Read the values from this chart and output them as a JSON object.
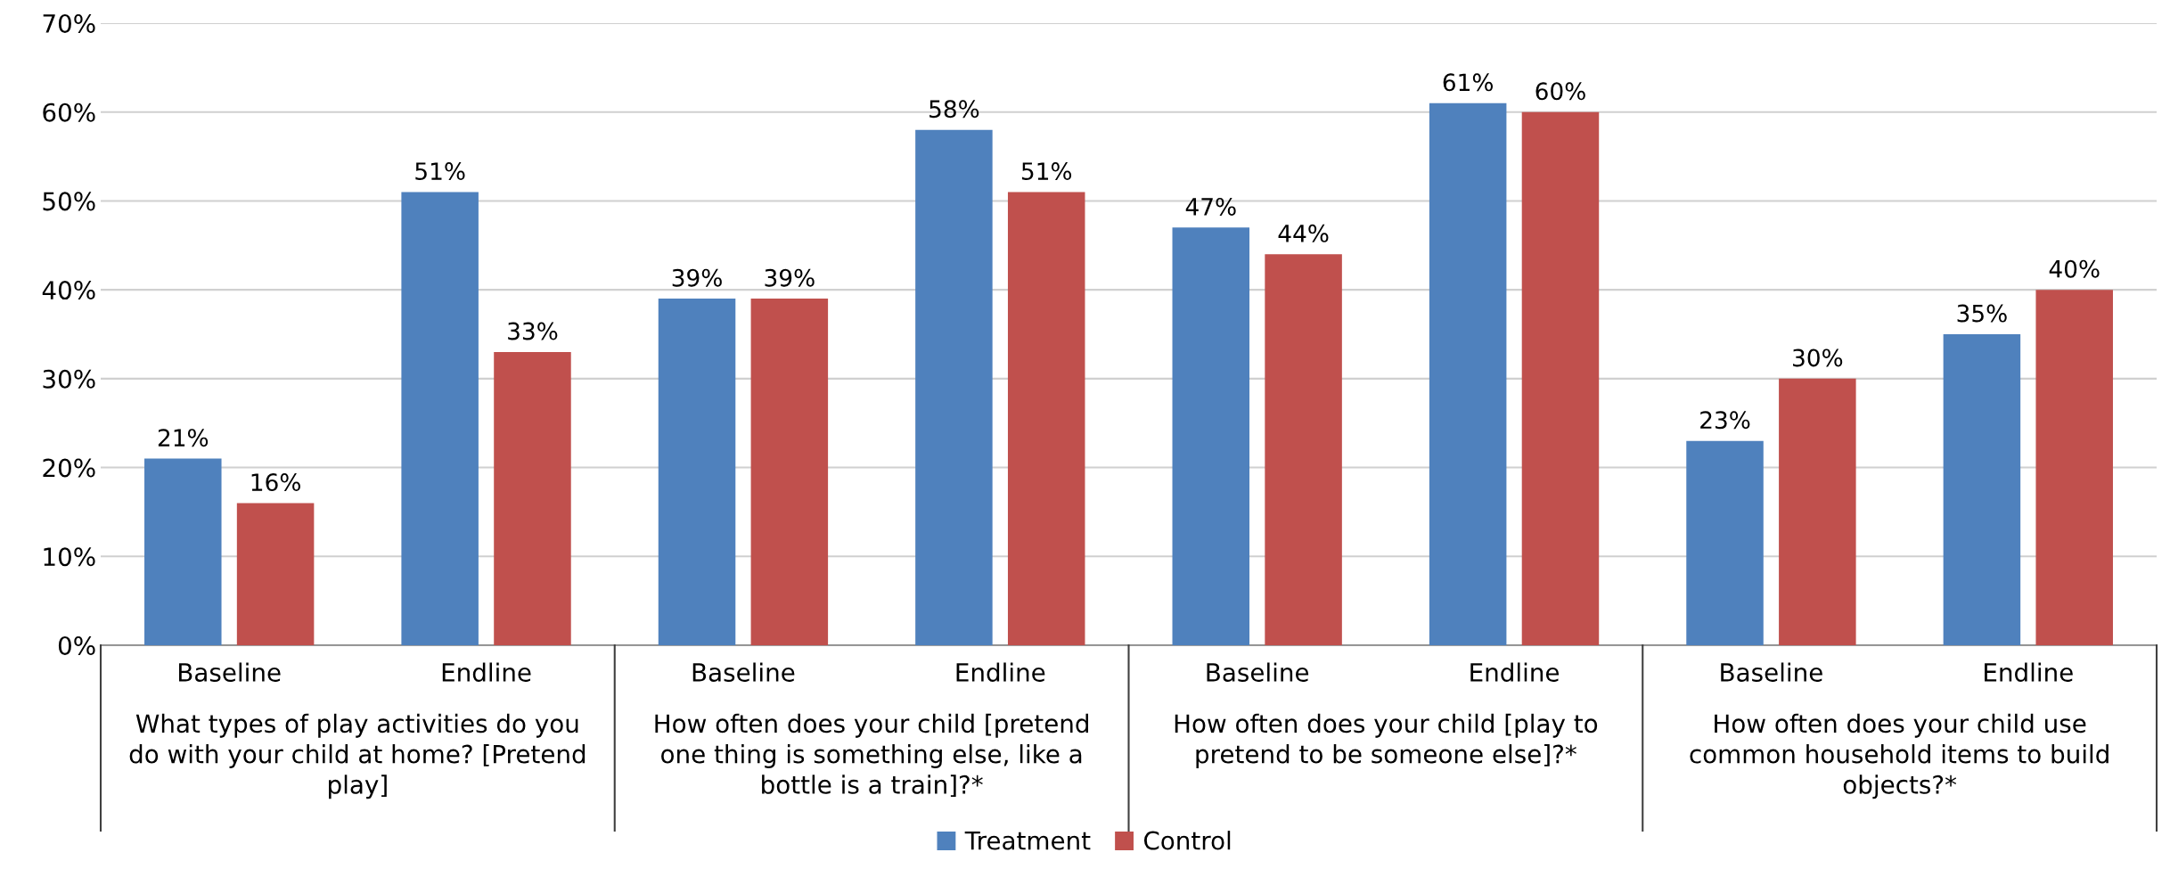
{
  "chart_data": {
    "type": "bar",
    "categories": [
      "Baseline",
      "Endline",
      "Baseline",
      "Endline",
      "Baseline",
      "Endline",
      "Baseline",
      "Endline"
    ],
    "series": [
      {
        "name": "Treatment",
        "color": "#4f81bd",
        "values": [
          21,
          51,
          39,
          58,
          47,
          61,
          23,
          35
        ],
        "value_labels": [
          "21%",
          "51%",
          "39%",
          "58%",
          "47%",
          "61%",
          "23%",
          "35%"
        ]
      },
      {
        "name": "Control",
        "color": "#c0504d",
        "values": [
          16,
          33,
          39,
          51,
          44,
          60,
          30,
          40
        ],
        "value_labels": [
          "16%",
          "33%",
          "39%",
          "51%",
          "44%",
          "60%",
          "30%",
          "40%"
        ]
      }
    ],
    "ylim": [
      0,
      70
    ],
    "yticks": [
      {
        "value": 0,
        "label": "0%"
      },
      {
        "value": 10,
        "label": "10%"
      },
      {
        "value": 20,
        "label": "20%"
      },
      {
        "value": 30,
        "label": "30%"
      },
      {
        "value": 40,
        "label": "40%"
      },
      {
        "value": 50,
        "label": "50%"
      },
      {
        "value": 60,
        "label": "60%"
      },
      {
        "value": 70,
        "label": "70%"
      }
    ],
    "grid": "y",
    "legend": "bottom",
    "annotations": [
      "What types of play activities do you do with your child at home? [Pretend play]",
      "How often does your child [pretend one thing is something else, like a bottle is a train]?*",
      "How often does your child [play to pretend to be someone else]?*",
      "How often does your child use common household items to build objects?*"
    ]
  }
}
